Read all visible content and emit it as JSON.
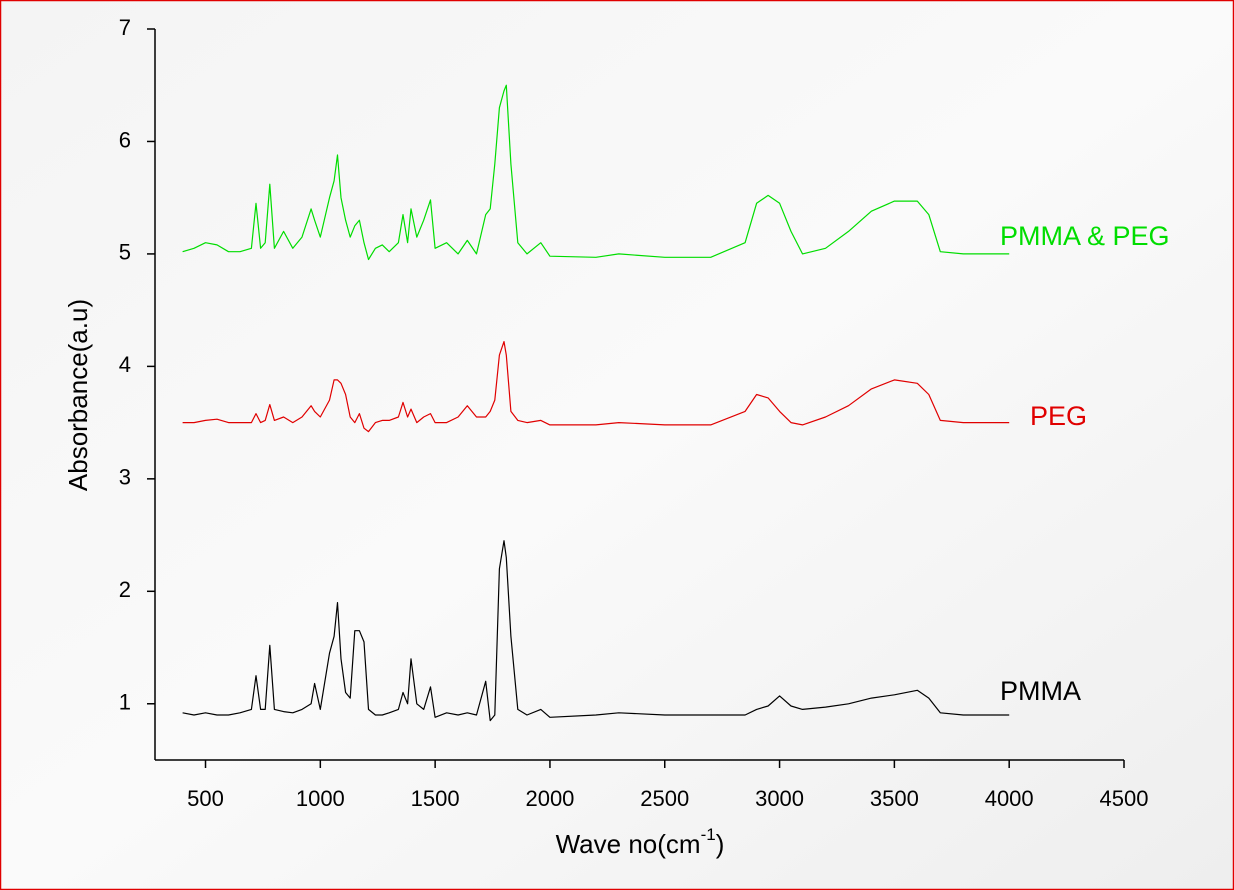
{
  "chart_data": {
    "type": "line",
    "x_label": {
      "text": "Wave no(cm",
      "superscript": "-1",
      "suffix": ")"
    },
    "y_label": "Absorbance(a.u)",
    "x": [
      400,
      450,
      500,
      550,
      600,
      650,
      700,
      720,
      740,
      760,
      780,
      800,
      840,
      880,
      920,
      960,
      975,
      1000,
      1040,
      1060,
      1075,
      1090,
      1110,
      1130,
      1150,
      1170,
      1190,
      1210,
      1240,
      1270,
      1300,
      1340,
      1360,
      1380,
      1395,
      1420,
      1450,
      1480,
      1500,
      1550,
      1600,
      1640,
      1680,
      1720,
      1740,
      1760,
      1780,
      1800,
      1810,
      1830,
      1860,
      1900,
      1960,
      2000,
      2200,
      2300,
      2500,
      2700,
      2850,
      2900,
      2950,
      3000,
      3050,
      3100,
      3200,
      3300,
      3400,
      3500,
      3600,
      3650,
      3700,
      3800,
      4000
    ],
    "series": [
      {
        "name": "PMMA & PEG",
        "color": "#00dd00",
        "values": [
          5.02,
          5.05,
          5.1,
          5.08,
          5.02,
          5.02,
          5.05,
          5.45,
          5.05,
          5.1,
          5.62,
          5.05,
          5.2,
          5.05,
          5.15,
          5.4,
          5.3,
          5.15,
          5.5,
          5.65,
          5.88,
          5.5,
          5.3,
          5.15,
          5.25,
          5.3,
          5.1,
          4.95,
          5.05,
          5.08,
          5.02,
          5.1,
          5.35,
          5.1,
          5.4,
          5.15,
          5.3,
          5.48,
          5.05,
          5.1,
          5.0,
          5.12,
          5.0,
          5.35,
          5.4,
          5.8,
          6.3,
          6.45,
          6.5,
          5.8,
          5.1,
          5.0,
          5.1,
          4.98,
          4.97,
          5.0,
          4.97,
          4.97,
          5.1,
          5.45,
          5.52,
          5.45,
          5.2,
          5.0,
          5.05,
          5.2,
          5.38,
          5.47,
          5.47,
          5.35,
          5.02,
          5.0,
          5.0
        ]
      },
      {
        "name": "PEG",
        "color": "#e00000",
        "values": [
          3.5,
          3.5,
          3.52,
          3.53,
          3.5,
          3.5,
          3.5,
          3.58,
          3.5,
          3.52,
          3.66,
          3.52,
          3.55,
          3.5,
          3.55,
          3.65,
          3.6,
          3.55,
          3.7,
          3.88,
          3.88,
          3.85,
          3.75,
          3.55,
          3.5,
          3.58,
          3.45,
          3.42,
          3.5,
          3.52,
          3.52,
          3.55,
          3.68,
          3.55,
          3.62,
          3.5,
          3.55,
          3.58,
          3.5,
          3.5,
          3.55,
          3.65,
          3.55,
          3.55,
          3.6,
          3.7,
          4.1,
          4.22,
          4.1,
          3.6,
          3.52,
          3.5,
          3.52,
          3.48,
          3.48,
          3.5,
          3.48,
          3.48,
          3.6,
          3.75,
          3.72,
          3.6,
          3.5,
          3.48,
          3.55,
          3.65,
          3.8,
          3.88,
          3.85,
          3.75,
          3.52,
          3.5,
          3.5
        ]
      },
      {
        "name": "PMMA",
        "color": "#000000",
        "values": [
          0.92,
          0.9,
          0.92,
          0.9,
          0.9,
          0.92,
          0.95,
          1.25,
          0.95,
          0.95,
          1.52,
          0.95,
          0.93,
          0.92,
          0.95,
          1.0,
          1.18,
          0.95,
          1.45,
          1.6,
          1.9,
          1.4,
          1.1,
          1.05,
          1.65,
          1.65,
          1.55,
          0.95,
          0.9,
          0.9,
          0.92,
          0.95,
          1.1,
          1.0,
          1.4,
          1.0,
          0.95,
          1.15,
          0.88,
          0.92,
          0.9,
          0.92,
          0.9,
          1.2,
          0.85,
          0.9,
          2.2,
          2.45,
          2.3,
          1.6,
          0.95,
          0.9,
          0.95,
          0.88,
          0.9,
          0.92,
          0.9,
          0.9,
          0.9,
          0.95,
          0.98,
          1.07,
          0.98,
          0.95,
          0.97,
          1.0,
          1.05,
          1.08,
          1.12,
          1.05,
          0.92,
          0.9,
          0.9
        ]
      }
    ],
    "xlim": [
      280,
      4500
    ],
    "xticks": [
      500,
      1000,
      1500,
      2000,
      2500,
      3000,
      3500,
      4000,
      4500
    ],
    "ylim": [
      0.5,
      7
    ],
    "yticks": [
      1,
      2,
      3,
      4,
      5,
      6,
      7
    ]
  }
}
